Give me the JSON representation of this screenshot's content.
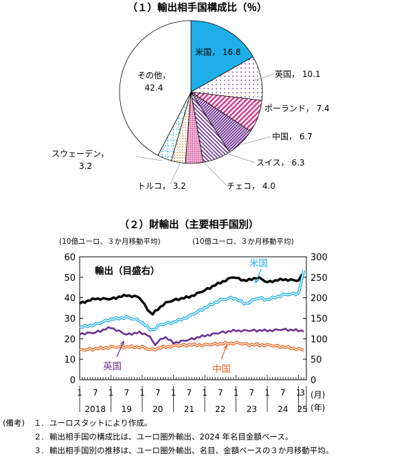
{
  "chart_data": [
    {
      "type": "pie",
      "title": "（１）輸出相手国構成比（％）",
      "slices": [
        {
          "label": "米国",
          "value": 16.8,
          "color": "#1eaee8",
          "pattern": "solid"
        },
        {
          "label": "英国",
          "value": 10.1,
          "color": "#6a2f8e",
          "pattern": "dots"
        },
        {
          "label": "ポーランド",
          "value": 7.4,
          "color": "#d23d8f",
          "pattern": "diagonal"
        },
        {
          "label": "中国",
          "value": 6.7,
          "color": "#6a2f8e",
          "pattern": "diagonal-dense"
        },
        {
          "label": "スイス",
          "value": 6.3,
          "color": "#6a2f8e",
          "pattern": "diagonal-reverse"
        },
        {
          "label": "チェコ",
          "value": 4.0,
          "color": "#d23d8f",
          "pattern": "dots-dense"
        },
        {
          "label": "トルコ",
          "value": 3.2,
          "color": "#e8822a",
          "pattern": "dots-orange"
        },
        {
          "label": "スウェーデン",
          "value": 3.2,
          "color": "#1eaee8",
          "pattern": "grid-dashed"
        },
        {
          "label": "その他",
          "value": 42.4,
          "color": "#ffffff",
          "pattern": "none"
        }
      ],
      "value_format": "，"
    },
    {
      "type": "line",
      "title": "（２）財輸出（主要相手国別）",
      "ylabel_left": "(10億ユーロ、３か月移動平均)",
      "ylabel_right": "(10億ユーロ、３か月移動平均)",
      "ylim_left": [
        0,
        60
      ],
      "yticks_left": [
        "0",
        "10",
        "20",
        "30",
        "40",
        "50",
        "60"
      ],
      "ylim_right": [
        0,
        300
      ],
      "yticks_right": [
        "0",
        "50",
        "100",
        "150",
        "200",
        "250",
        "300"
      ],
      "x_month_labels": [
        "1",
        "7",
        "1",
        "7",
        "1",
        "7",
        "1",
        "7",
        "1",
        "7",
        "1",
        "7",
        "1",
        "7",
        "1",
        "3"
      ],
      "x_year_labels": [
        "2018",
        "19",
        "20",
        "21",
        "22",
        "23",
        "24",
        "25"
      ],
      "x_unit_month": "(月)",
      "x_unit_year": "(年)",
      "x_start": "2018-01",
      "x_end": "2025-03",
      "series": [
        {
          "name": "輸出（目盛右）",
          "axis": "right",
          "color": "#000000",
          "anchors": [
            [
              2018.0,
              186
            ],
            [
              2018.5,
              198
            ],
            [
              2019.0,
              197
            ],
            [
              2019.5,
              206
            ],
            [
              2019.9,
              202
            ],
            [
              2020.3,
              158
            ],
            [
              2020.7,
              186
            ],
            [
              2021.0,
              194
            ],
            [
              2021.5,
              202
            ],
            [
              2022.0,
              218
            ],
            [
              2022.5,
              237
            ],
            [
              2022.9,
              251
            ],
            [
              2023.3,
              241
            ],
            [
              2023.7,
              250
            ],
            [
              2024.0,
              238
            ],
            [
              2024.5,
              245
            ],
            [
              2025.0,
              242
            ],
            [
              2025.17,
              262
            ]
          ]
        },
        {
          "name": "米国",
          "axis": "left",
          "color": "#1eaee8",
          "anchors": [
            [
              2018.0,
              25.5
            ],
            [
              2018.5,
              27
            ],
            [
              2019.0,
              29.5
            ],
            [
              2019.5,
              30.5
            ],
            [
              2019.9,
              29
            ],
            [
              2020.3,
              24
            ],
            [
              2020.6,
              27
            ],
            [
              2021.0,
              28
            ],
            [
              2021.5,
              31
            ],
            [
              2022.0,
              35
            ],
            [
              2022.5,
              39
            ],
            [
              2022.9,
              40
            ],
            [
              2023.3,
              37
            ],
            [
              2023.7,
              40
            ],
            [
              2024.0,
              39
            ],
            [
              2024.5,
              41.5
            ],
            [
              2025.0,
              42
            ],
            [
              2025.17,
              53
            ]
          ]
        },
        {
          "name": "英国",
          "axis": "left",
          "color": "#6a2f8e",
          "anchors": [
            [
              2018.0,
              22.5
            ],
            [
              2018.5,
              23
            ],
            [
              2019.0,
              25.5
            ],
            [
              2019.5,
              22
            ],
            [
              2019.9,
              23
            ],
            [
              2020.2,
              22
            ],
            [
              2020.4,
              17
            ],
            [
              2020.7,
              21
            ],
            [
              2021.0,
              18
            ],
            [
              2021.5,
              19.5
            ],
            [
              2022.0,
              21.5
            ],
            [
              2022.5,
              23
            ],
            [
              2023.0,
              24
            ],
            [
              2023.5,
              24
            ],
            [
              2024.0,
              24
            ],
            [
              2024.5,
              24.5
            ],
            [
              2025.0,
              24
            ],
            [
              2025.17,
              24
            ]
          ]
        },
        {
          "name": "中国",
          "axis": "left",
          "color": "#e8631f",
          "anchors": [
            [
              2018.0,
              14.5
            ],
            [
              2018.5,
              15
            ],
            [
              2019.0,
              16
            ],
            [
              2019.5,
              16
            ],
            [
              2020.0,
              16
            ],
            [
              2020.3,
              14.5
            ],
            [
              2020.7,
              16
            ],
            [
              2021.0,
              16.5
            ],
            [
              2021.5,
              17
            ],
            [
              2022.0,
              17
            ],
            [
              2022.5,
              17.5
            ],
            [
              2023.0,
              18
            ],
            [
              2023.5,
              17
            ],
            [
              2024.0,
              17
            ],
            [
              2024.5,
              16
            ],
            [
              2025.0,
              15
            ],
            [
              2025.17,
              14.5
            ]
          ]
        }
      ],
      "annotations": [
        {
          "label": "輸出（目盛右）",
          "series": 0
        },
        {
          "label": "米国",
          "series": 1
        },
        {
          "label": "英国",
          "series": 2
        },
        {
          "label": "中国",
          "series": 3
        }
      ]
    }
  ],
  "notes": {
    "heading": "(備考)",
    "items": [
      {
        "num": "１.",
        "text": "ユーロスタットにより作成。"
      },
      {
        "num": "２.",
        "text": "輸出相手国の構成比は、ユーロ圏外輸出、2024 年名目金額ベース。"
      },
      {
        "num": "３.",
        "text": "輸出相手国別の推移は、ユーロ圏外輸出、名目、金額ベースの３か月移動平均。"
      }
    ]
  }
}
